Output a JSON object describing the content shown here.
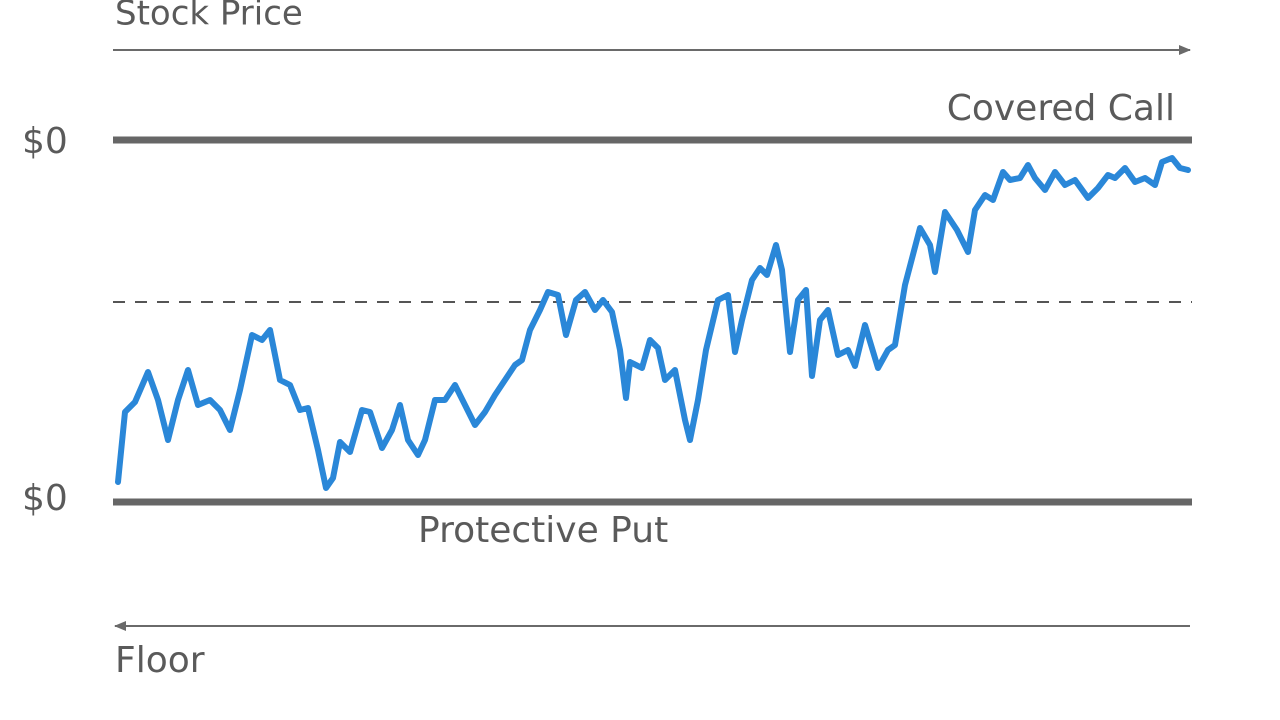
{
  "header": {
    "title": "Stock Price"
  },
  "upper": {
    "value_label": "$0",
    "line_label": "Covered Call"
  },
  "lower": {
    "value_label": "$0",
    "line_label": "Protective Put"
  },
  "footer": {
    "label": "Floor"
  }
}
